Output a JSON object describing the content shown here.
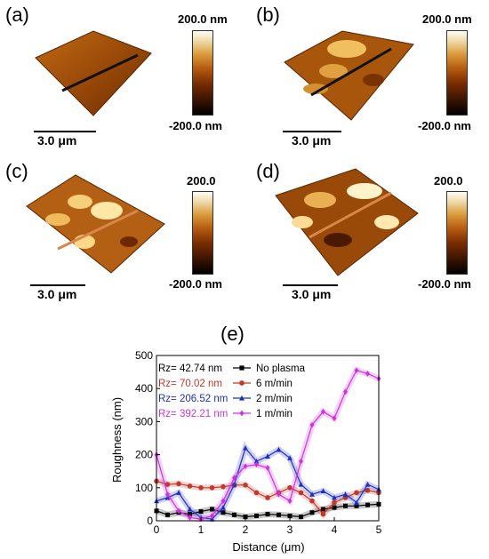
{
  "panels": [
    {
      "letter": "(a)",
      "scale_label": "3.0 μm",
      "cbar_max": "200.0 nm",
      "cbar_min": "-200.0 nm"
    },
    {
      "letter": "(b)",
      "scale_label": "3.0 μm",
      "cbar_max": "200.0 nm",
      "cbar_min": "-200.0 nm"
    },
    {
      "letter": "(c)",
      "scale_label": "3.0 μm",
      "cbar_max": "200.0",
      "cbar_min": "-200.0 nm"
    },
    {
      "letter": "(d)",
      "scale_label": "3.0 μm",
      "cbar_max": "200.0",
      "cbar_min": "-200.0 nm"
    }
  ],
  "chart_data": {
    "type": "line",
    "panel_letter": "(e)",
    "xlabel": "Distance (μm)",
    "ylabel": "Roughness (nm)",
    "xlim": [
      0,
      5
    ],
    "ylim": [
      0,
      500
    ],
    "xticks": [
      "0",
      "1",
      "2",
      "3",
      "4",
      "5"
    ],
    "yticks": [
      "0",
      "100",
      "200",
      "300",
      "400",
      "500"
    ],
    "legend_position": "top-left",
    "series": [
      {
        "name": "No plasma",
        "rz": "Rz= 42.74 nm",
        "color": "#000000",
        "marker": "square",
        "x": [
          0,
          0.25,
          0.5,
          0.75,
          1.0,
          1.25,
          1.5,
          1.75,
          2.0,
          2.25,
          2.5,
          2.75,
          3.0,
          3.25,
          3.5,
          3.75,
          4.0,
          4.25,
          4.5,
          4.75,
          5.0
        ],
        "y": [
          30,
          18,
          25,
          20,
          28,
          35,
          25,
          18,
          12,
          15,
          20,
          18,
          15,
          12,
          25,
          35,
          40,
          45,
          45,
          48,
          50
        ]
      },
      {
        "name": "6 m/min",
        "rz": "Rz= 70.02 nm",
        "color": "#c0392b",
        "marker": "circle",
        "x": [
          0,
          0.25,
          0.5,
          0.75,
          1.0,
          1.25,
          1.5,
          1.75,
          2.0,
          2.25,
          2.5,
          2.75,
          3.0,
          3.25,
          3.5,
          3.75,
          4.0,
          4.25,
          4.5,
          4.75,
          5.0
        ],
        "y": [
          120,
          110,
          112,
          105,
          100,
          100,
          103,
          108,
          108,
          85,
          70,
          85,
          100,
          85,
          60,
          20,
          55,
          70,
          85,
          92,
          85
        ]
      },
      {
        "name": "2 m/min",
        "rz": "Rz= 206.52 nm",
        "color": "#1f2fbf",
        "marker": "triangle",
        "x": [
          0,
          0.25,
          0.5,
          0.75,
          1.0,
          1.25,
          1.5,
          1.75,
          2.0,
          2.25,
          2.5,
          2.75,
          3.0,
          3.25,
          3.5,
          3.75,
          4.0,
          4.25,
          4.5,
          4.75,
          5.0
        ],
        "y": [
          60,
          70,
          85,
          35,
          10,
          5,
          40,
          110,
          220,
          180,
          195,
          215,
          190,
          110,
          80,
          90,
          70,
          80,
          55,
          110,
          95
        ]
      },
      {
        "name": "1 m/min",
        "rz": "Rz= 392.21 nm",
        "color": "#cc33dd",
        "marker": "diamond",
        "x": [
          0,
          0.25,
          0.5,
          0.75,
          1.0,
          1.25,
          1.5,
          1.75,
          2.0,
          2.25,
          2.5,
          2.75,
          3.0,
          3.25,
          3.5,
          3.75,
          4.0,
          4.25,
          4.5,
          4.75,
          5.0
        ],
        "y": [
          200,
          80,
          30,
          10,
          5,
          15,
          60,
          130,
          165,
          170,
          160,
          80,
          60,
          180,
          290,
          330,
          310,
          390,
          455,
          445,
          430
        ]
      }
    ]
  }
}
